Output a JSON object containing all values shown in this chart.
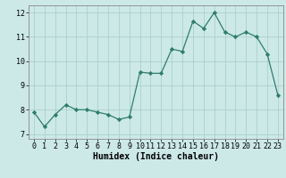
{
  "x": [
    0,
    1,
    2,
    3,
    4,
    5,
    6,
    7,
    8,
    9,
    10,
    11,
    12,
    13,
    14,
    15,
    16,
    17,
    18,
    19,
    20,
    21,
    22,
    23
  ],
  "y": [
    7.9,
    7.3,
    7.8,
    8.2,
    8.0,
    8.0,
    7.9,
    7.8,
    7.6,
    7.7,
    9.55,
    9.5,
    9.5,
    10.5,
    10.4,
    11.65,
    11.35,
    12.0,
    11.2,
    11.0,
    11.2,
    11.0,
    10.3,
    8.6
  ],
  "line_color": "#2e7d6e",
  "marker": "D",
  "markersize": 2.2,
  "linewidth": 0.9,
  "bg_color": "#cce9e7",
  "grid_color_major": "#aad0cd",
  "grid_color_minor": "#aad0cd",
  "xlabel": "Humidex (Indice chaleur)",
  "xlabel_fontsize": 7,
  "xlim": [
    -0.5,
    23.5
  ],
  "ylim": [
    6.8,
    12.3
  ],
  "yticks": [
    7,
    8,
    9,
    10,
    11,
    12
  ],
  "xticks": [
    0,
    1,
    2,
    3,
    4,
    5,
    6,
    7,
    8,
    9,
    10,
    11,
    12,
    13,
    14,
    15,
    16,
    17,
    18,
    19,
    20,
    21,
    22,
    23
  ],
  "tick_fontsize": 6,
  "axis_bg": "#cce9e7"
}
